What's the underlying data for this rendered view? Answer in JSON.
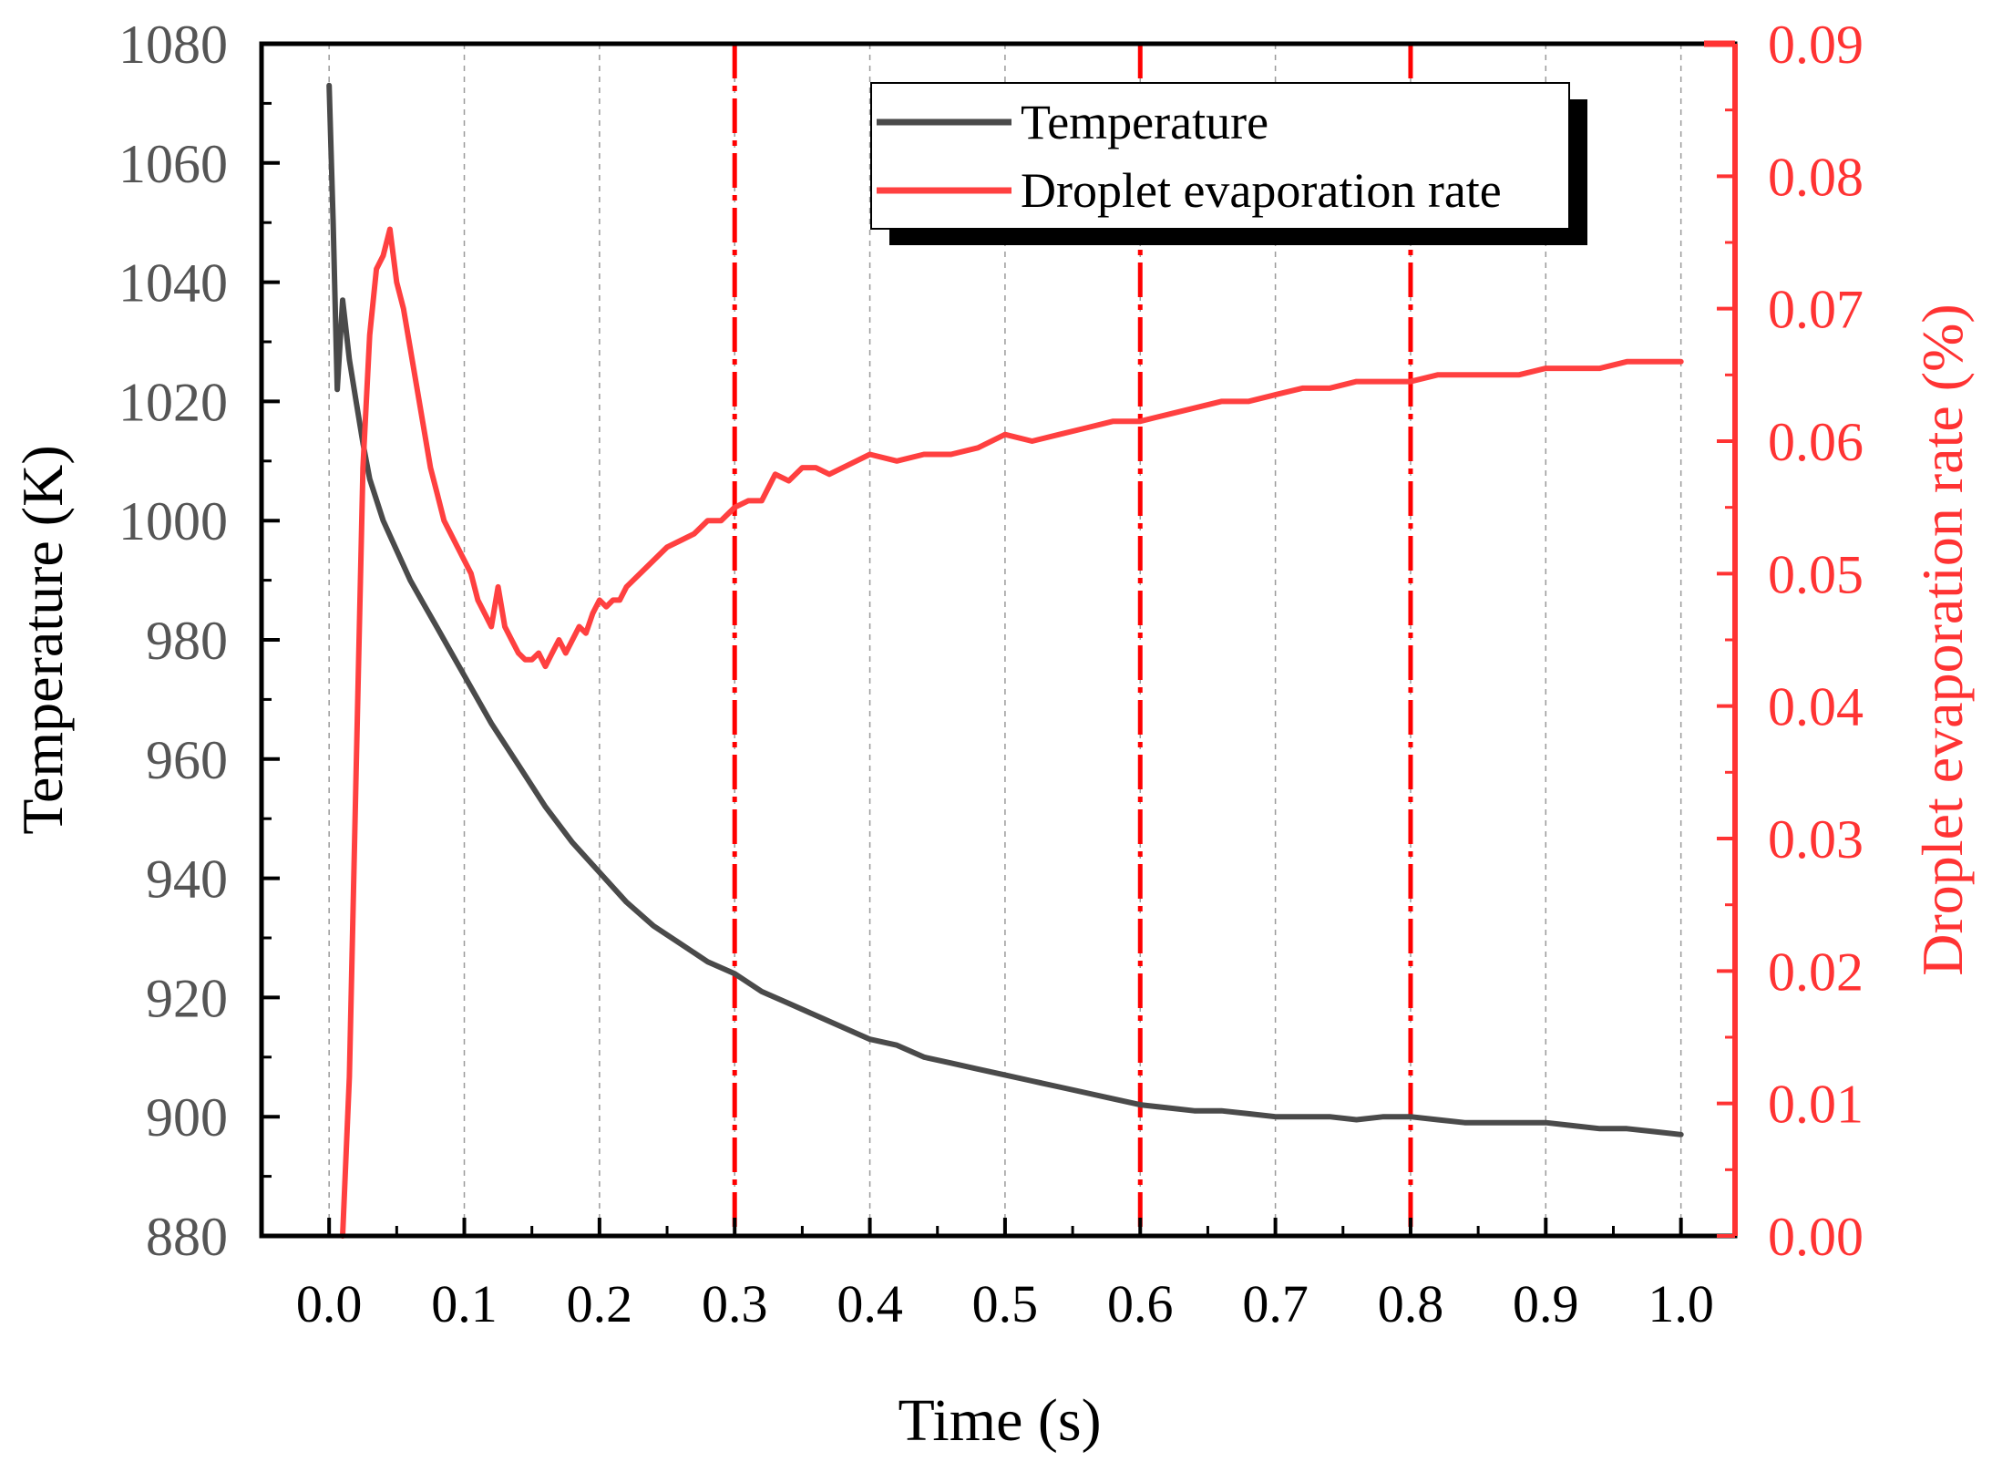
{
  "chart_data": {
    "type": "line",
    "dual_axis": true,
    "xlabel": "Time (s)",
    "ylabel_left": "Temperature (K)",
    "ylabel_right": "Droplet evaporation rate (%)",
    "xlim": [
      -0.05,
      1.04
    ],
    "ylim_left": [
      880,
      1080
    ],
    "ylim_right": [
      0.0,
      0.09
    ],
    "x_ticks": [
      "0.0",
      "0.1",
      "0.2",
      "0.3",
      "0.4",
      "0.5",
      "0.6",
      "0.7",
      "0.8",
      "0.9",
      "1.0"
    ],
    "y_left_ticks": [
      "880",
      "900",
      "920",
      "940",
      "960",
      "980",
      "1000",
      "1020",
      "1040",
      "1060",
      "1080"
    ],
    "y_right_ticks": [
      "0.00",
      "0.01",
      "0.02",
      "0.03",
      "0.04",
      "0.05",
      "0.06",
      "0.07",
      "0.08",
      "0.09"
    ],
    "grid": "vertical dashed",
    "legend": {
      "position": "top-right",
      "entries": [
        "Temperature",
        "Droplet evaporation rate"
      ]
    },
    "vlines": [
      {
        "x": 0.3,
        "style": "dash-dot",
        "color": "#ff0000"
      },
      {
        "x": 0.6,
        "style": "dash-dot",
        "color": "#ff0000"
      },
      {
        "x": 0.8,
        "style": "dash-dot",
        "color": "#ff0000"
      }
    ],
    "colors": {
      "temperature": "#4a4a4a",
      "evaporation": "#ff4040",
      "right_axis": "#ff3333",
      "left_axis": "#000000"
    },
    "series": [
      {
        "name": "Temperature",
        "axis": "left",
        "x": [
          0.0,
          0.003,
          0.006,
          0.01,
          0.012,
          0.015,
          0.02,
          0.025,
          0.03,
          0.04,
          0.05,
          0.06,
          0.07,
          0.08,
          0.09,
          0.1,
          0.12,
          0.14,
          0.16,
          0.18,
          0.2,
          0.22,
          0.24,
          0.26,
          0.28,
          0.3,
          0.32,
          0.34,
          0.36,
          0.38,
          0.4,
          0.42,
          0.44,
          0.46,
          0.48,
          0.5,
          0.52,
          0.54,
          0.56,
          0.58,
          0.6,
          0.62,
          0.64,
          0.66,
          0.68,
          0.7,
          0.72,
          0.74,
          0.76,
          0.78,
          0.8,
          0.82,
          0.84,
          0.86,
          0.88,
          0.9,
          0.92,
          0.94,
          0.96,
          0.98,
          1.0
        ],
        "values": [
          1073,
          1050,
          1022,
          1037,
          1033,
          1027,
          1020,
          1013,
          1007,
          1000,
          995,
          990,
          986,
          982,
          978,
          974,
          966,
          959,
          952,
          946,
          941,
          936,
          932,
          929,
          926,
          924,
          921,
          919,
          917,
          915,
          913,
          912,
          910,
          909,
          908,
          907,
          906,
          905,
          904,
          903,
          902,
          901.5,
          901,
          901,
          900.5,
          900,
          900,
          900,
          899.5,
          900,
          900,
          899.5,
          899,
          899,
          899,
          899,
          898.5,
          898,
          898,
          897.5,
          897
        ]
      },
      {
        "name": "Droplet evaporation rate",
        "axis": "right",
        "x": [
          0.01,
          0.015,
          0.02,
          0.025,
          0.03,
          0.035,
          0.04,
          0.045,
          0.05,
          0.055,
          0.06,
          0.065,
          0.07,
          0.075,
          0.08,
          0.085,
          0.09,
          0.095,
          0.1,
          0.105,
          0.11,
          0.115,
          0.12,
          0.125,
          0.13,
          0.135,
          0.14,
          0.145,
          0.15,
          0.155,
          0.16,
          0.165,
          0.17,
          0.175,
          0.18,
          0.185,
          0.19,
          0.195,
          0.2,
          0.205,
          0.21,
          0.215,
          0.22,
          0.23,
          0.24,
          0.25,
          0.26,
          0.27,
          0.28,
          0.29,
          0.3,
          0.31,
          0.32,
          0.33,
          0.34,
          0.35,
          0.36,
          0.37,
          0.38,
          0.39,
          0.4,
          0.42,
          0.44,
          0.46,
          0.48,
          0.5,
          0.52,
          0.54,
          0.56,
          0.58,
          0.6,
          0.62,
          0.64,
          0.66,
          0.68,
          0.7,
          0.72,
          0.74,
          0.76,
          0.78,
          0.8,
          0.82,
          0.84,
          0.86,
          0.88,
          0.9,
          0.92,
          0.94,
          0.96,
          0.98,
          1.0
        ],
        "values": [
          0.0,
          0.012,
          0.035,
          0.058,
          0.068,
          0.073,
          0.074,
          0.076,
          0.072,
          0.07,
          0.067,
          0.064,
          0.061,
          0.058,
          0.056,
          0.054,
          0.053,
          0.052,
          0.051,
          0.05,
          0.048,
          0.047,
          0.046,
          0.049,
          0.046,
          0.045,
          0.044,
          0.0435,
          0.0435,
          0.044,
          0.043,
          0.044,
          0.045,
          0.044,
          0.045,
          0.046,
          0.0455,
          0.047,
          0.048,
          0.0475,
          0.048,
          0.048,
          0.049,
          0.05,
          0.051,
          0.052,
          0.0525,
          0.053,
          0.054,
          0.054,
          0.055,
          0.0555,
          0.0555,
          0.0575,
          0.057,
          0.058,
          0.058,
          0.0575,
          0.058,
          0.0585,
          0.059,
          0.0585,
          0.059,
          0.059,
          0.0595,
          0.0605,
          0.06,
          0.0605,
          0.061,
          0.0615,
          0.0615,
          0.062,
          0.0625,
          0.063,
          0.063,
          0.0635,
          0.064,
          0.064,
          0.0645,
          0.0645,
          0.0645,
          0.065,
          0.065,
          0.065,
          0.065,
          0.0655,
          0.0655,
          0.0655,
          0.066,
          0.066,
          0.066
        ]
      }
    ]
  }
}
